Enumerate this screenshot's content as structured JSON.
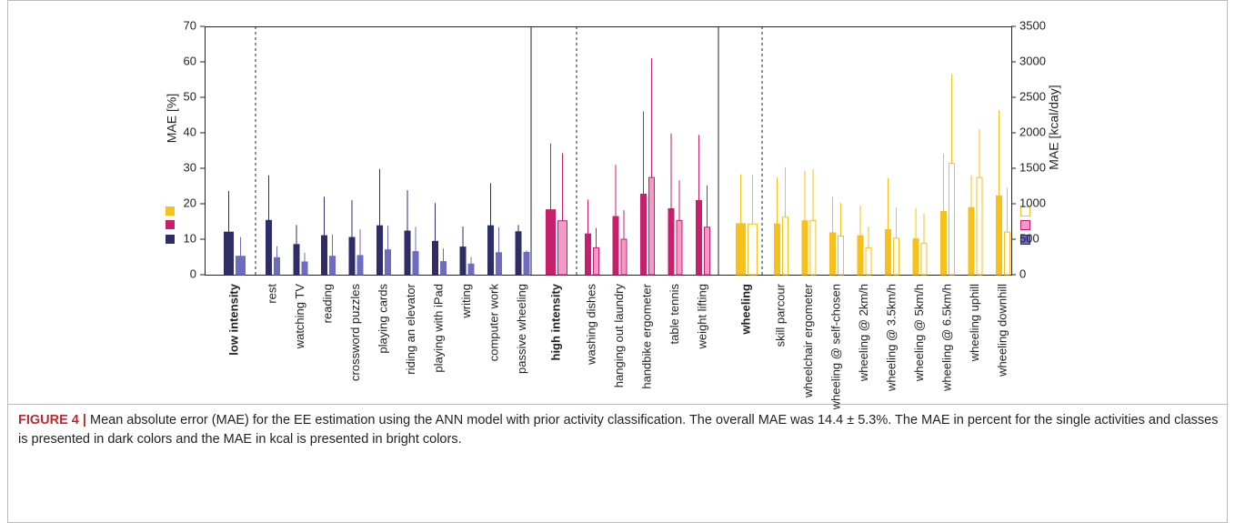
{
  "chart_data": {
    "type": "bar",
    "categories": [
      "low intensity",
      "rest",
      "watching TV",
      "reading",
      "crossword puzzles",
      "playing cards",
      "riding an elevator",
      "playing with iPad",
      "writing",
      "computer work",
      "passive wheeling",
      "high intensity",
      "washing dishes",
      "hanging out laundry",
      "handbike ergometer",
      "table tennis",
      "weight lifting",
      "wheeling",
      "skill parcour",
      "wheelchair ergometer",
      "wheeling @ self-chosen",
      "wheeling @ 2km/h",
      "wheeling @ 3.5km/h",
      "wheeling @ 5km/h",
      "wheeling @ 6.5km/h",
      "wheeling uphill",
      "wheeling downhill"
    ],
    "series": [
      {
        "axis": "y",
        "values": [
          12.0,
          15.3,
          8.5,
          11.0,
          10.5,
          13.8,
          12.3,
          9.4,
          7.8,
          13.8,
          12.1,
          18.3,
          11.5,
          16.4,
          22.7,
          18.6,
          20.9,
          14.4,
          14.3,
          15.2,
          11.8,
          11.0,
          12.7,
          10.1,
          17.8,
          18.9,
          22.2
        ],
        "errors": [
          11.6,
          12.7,
          5.5,
          11.0,
          10.5,
          16.0,
          11.5,
          10.8,
          5.8,
          12.0,
          1.9,
          18.7,
          9.7,
          14.6,
          23.3,
          21.2,
          18.5,
          13.9,
          13.2,
          14.1,
          10.2,
          8.5,
          14.6,
          8.7,
          16.4,
          9.1,
          24.1
        ],
        "colors": [
          "#2e2d66",
          "#2e2d66",
          "#2e2d66",
          "#2e2d66",
          "#2e2d66",
          "#2e2d66",
          "#2e2d66",
          "#2e2d66",
          "#2e2d66",
          "#2e2d66",
          "#2e2d66",
          "#c81e6e",
          "#c81e6e",
          "#c81e6e",
          "#c81e6e",
          "#c81e6e",
          "#c81e6e",
          "#f7c11a",
          "#f7c11a",
          "#f7c11a",
          "#f7c11a",
          "#f7c11a",
          "#f7c11a",
          "#f7c11a",
          "#f7c11a",
          "#f7c11a",
          "#f7c11a"
        ],
        "edgecolors": [
          "#2e2d66",
          "#2e2d66",
          "#2e2d66",
          "#2e2d66",
          "#2e2d66",
          "#2e2d66",
          "#2e2d66",
          "#2e2d66",
          "#2e2d66",
          "#2e2d66",
          "#2e2d66",
          "#c81e6e",
          "#c81e6e",
          "#c81e6e",
          "#c81e6e",
          "#c81e6e",
          "#c81e6e",
          "#f7c11a",
          "#f7c11a",
          "#f7c11a",
          "#f7c11a",
          "#f7c11a",
          "#f7c11a",
          "#f7c11a",
          "#f7c11a",
          "#f7c11a",
          "#f7c11a"
        ]
      },
      {
        "axis": "y2",
        "values": [
          260,
          240,
          180,
          260,
          270,
          350,
          325,
          185,
          150,
          310,
          315,
          760,
          380,
          500,
          1370,
          765,
          670,
          715,
          810,
          765,
          545,
          380,
          515,
          440,
          1570,
          1370,
          600
        ],
        "errors": [
          270,
          160,
          130,
          305,
          370,
          340,
          350,
          185,
          100,
          360,
          30,
          955,
          280,
          410,
          1680,
          565,
          590,
          695,
          705,
          725,
          470,
          300,
          435,
          425,
          1255,
          680,
          625
        ],
        "colors": [
          "#6e6cc0",
          "#6e6cc0",
          "#6e6cc0",
          "#6e6cc0",
          "#6e6cc0",
          "#6e6cc0",
          "#6e6cc0",
          "#6e6cc0",
          "#6e6cc0",
          "#6e6cc0",
          "#6e6cc0",
          "#f49ac8",
          "#f49ac8",
          "#f49ac8",
          "#f49ac8",
          "#f49ac8",
          "#f49ac8",
          "#ffffff",
          "#ffffff",
          "#ffffff",
          "#ffffff",
          "#ffffff",
          "#ffffff",
          "#ffffff",
          "#ffffff",
          "#ffffff",
          "#ffffff"
        ],
        "edgecolors": [
          "#6e6cc0",
          "#6e6cc0",
          "#6e6cc0",
          "#6e6cc0",
          "#6e6cc0",
          "#6e6cc0",
          "#6e6cc0",
          "#6e6cc0",
          "#6e6cc0",
          "#6e6cc0",
          "#6e6cc0",
          "#c81e6e",
          "#c81e6e",
          "#c81e6e",
          "#c81e6e",
          "#c81e6e",
          "#c81e6e",
          "#f7c11a",
          "#f7c11a",
          "#f7c11a",
          "#f7c11a",
          "#f7c11a",
          "#f7c11a",
          "#f7c11a",
          "#f7c11a",
          "#f7c11a",
          "#f7c11a"
        ]
      }
    ],
    "ylim": [
      0,
      70
    ],
    "yticks": [
      0,
      10,
      20,
      30,
      40,
      50,
      60,
      70
    ],
    "y2lim": [
      0,
      3500
    ],
    "y2ticks": [
      0,
      500,
      1000,
      1500,
      2000,
      2500,
      3000,
      3500
    ],
    "ylabel": "MAE [%]",
    "y2label": "MAE [kcal/day]"
  },
  "caption": {
    "label": "FIGURE 4 |",
    "text": "Mean absolute error (MAE) for the EE estimation using the ANN model with prior activity classification. The overall MAE was 14.4 ± 5.3%. The MAE in percent for the single activities and classes is presented in dark colors and the MAE in kcal is presented in bright colors."
  }
}
